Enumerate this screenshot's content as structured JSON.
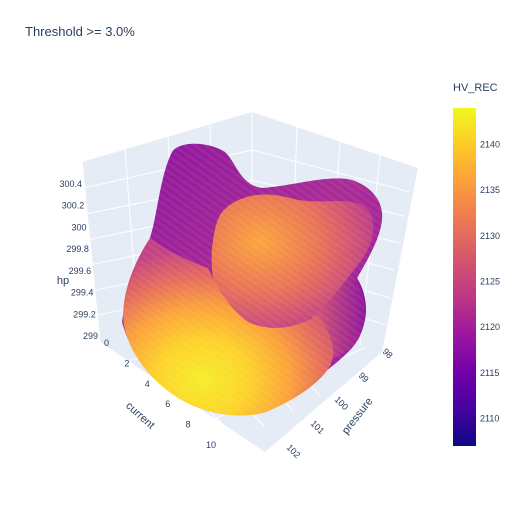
{
  "chart_data": {
    "type": "surface3d",
    "title": "Threshold >= 3.0%",
    "axes": {
      "x": {
        "label": "current",
        "ticks": [
          "0",
          "2",
          "4",
          "6",
          "8",
          "10"
        ]
      },
      "y": {
        "label": "pressure",
        "ticks": [
          "98",
          "99",
          "100",
          "101",
          "102"
        ]
      },
      "z": {
        "label": "hp",
        "ticks": [
          "299",
          "299.2",
          "299.4",
          "299.6",
          "299.8",
          "300",
          "300.2",
          "300.4"
        ]
      }
    },
    "colorbar": {
      "title": "HV_REC",
      "ticks": [
        "2110",
        "2115",
        "2120",
        "2125",
        "2130",
        "2135",
        "2140"
      ],
      "range": [
        2107,
        2144
      ],
      "colorscale": "Plasma"
    },
    "grid": true
  }
}
